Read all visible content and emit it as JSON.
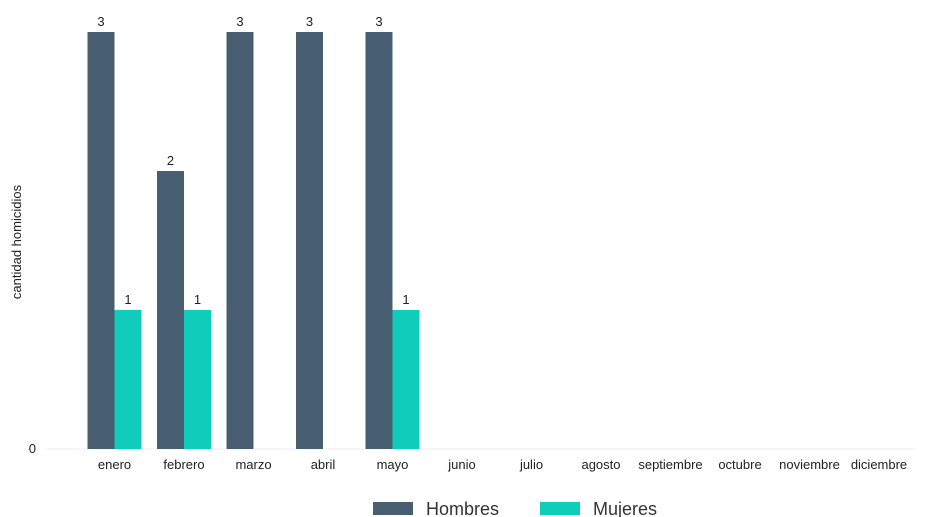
{
  "chart_data": {
    "type": "bar",
    "ylabel": "cantidad homicidios",
    "xlabel": "",
    "categories": [
      "enero",
      "febrero",
      "marzo",
      "abril",
      "mayo",
      "junio",
      "julio",
      "agosto",
      "septiembre",
      "octubre",
      "noviembre",
      "diciembre"
    ],
    "series": [
      {
        "name": "Hombres",
        "color": "#465e70",
        "values": [
          3,
          2,
          3,
          3,
          3,
          null,
          null,
          null,
          null,
          null,
          null,
          null
        ]
      },
      {
        "name": "Mujeres",
        "color": "#10cdbb",
        "values": [
          1,
          1,
          null,
          null,
          1,
          null,
          null,
          null,
          null,
          null,
          null,
          null
        ]
      }
    ],
    "yticks": [
      0
    ],
    "ylim": [
      0,
      3
    ],
    "grid": false,
    "legend_position": "bottom"
  }
}
